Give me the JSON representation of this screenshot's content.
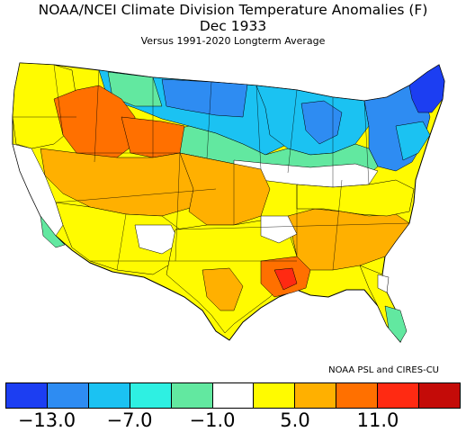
{
  "header": {
    "title": "NOAA/NCEI Climate Division Temperature Anomalies (F)",
    "date": "Dec 1933",
    "subtitle": "Versus 1991-2020 Longterm Average"
  },
  "credit": "NOAA PSL and CIRES-CU",
  "legend": {
    "colors": [
      "#1c3ef2",
      "#2e8cf2",
      "#1bc2f2",
      "#2ef0e2",
      "#62e8a0",
      "#ffffff",
      "#fffb00",
      "#ffb000",
      "#ff7000",
      "#ff2a12",
      "#c40b08"
    ],
    "labels": [
      "−13.0",
      "−7.0",
      "−1.0",
      "5.0",
      "11.0"
    ]
  },
  "map": {
    "regions": [
      {
        "name": "northeast",
        "color": "#2e8cf2"
      },
      {
        "name": "maine",
        "color": "#1c3ef2"
      },
      {
        "name": "great-lakes",
        "color": "#1bc2f2"
      },
      {
        "name": "northern-plains",
        "color": "#2e8cf2"
      },
      {
        "name": "corn-belt",
        "color": "#62e8a0"
      },
      {
        "name": "pacific-northwest",
        "color": "#fffb00"
      },
      {
        "name": "idaho",
        "color": "#ff7000"
      },
      {
        "name": "great-basin",
        "color": "#ffb000"
      },
      {
        "name": "california",
        "color": "#ffffff"
      },
      {
        "name": "southwest",
        "color": "#fffb00"
      },
      {
        "name": "south-central",
        "color": "#fffb00"
      },
      {
        "name": "lower-mississippi",
        "color": "#ff7000"
      },
      {
        "name": "southeast",
        "color": "#ffb000"
      },
      {
        "name": "florida-peninsula",
        "color": "#62e8a0"
      }
    ]
  }
}
